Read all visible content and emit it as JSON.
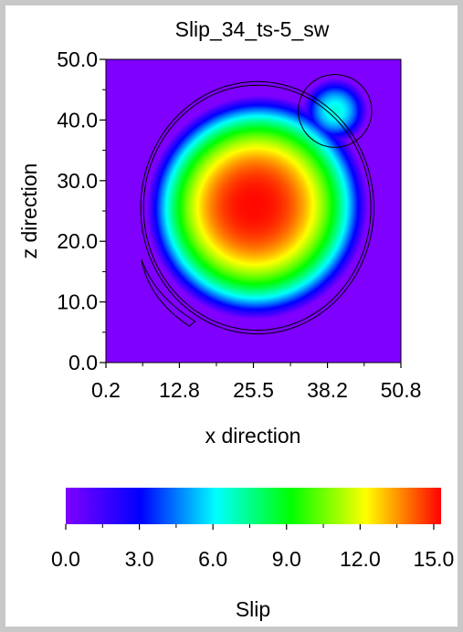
{
  "chart_data": {
    "type": "heatmap",
    "title": "Slip_34_ts-5_sw",
    "xlabel": "x direction",
    "ylabel": "z direction",
    "x_ticks": [
      "0.2",
      "12.8",
      "25.5",
      "38.2",
      "50.8"
    ],
    "x_tick_values": [
      0.2,
      12.8,
      25.5,
      38.2,
      50.8
    ],
    "y_ticks": [
      "0.0",
      "10.0",
      "20.0",
      "30.0",
      "40.0",
      "50.0"
    ],
    "y_tick_values": [
      0,
      10,
      20,
      30,
      40,
      50
    ],
    "xlim": [
      0.2,
      50.8
    ],
    "ylim": [
      0,
      50
    ],
    "colorbar": {
      "label": "Slip",
      "ticks": [
        "0.0",
        "3.0",
        "6.0",
        "9.0",
        "12.0",
        "15.0"
      ],
      "tick_values": [
        0,
        3,
        6,
        9,
        12,
        15
      ],
      "range": [
        0,
        15.3
      ],
      "colormap": [
        "#7f00ff",
        "#0000ff",
        "#00ffff",
        "#00ff00",
        "#ffff00",
        "#ff0000"
      ]
    },
    "field": {
      "background_value": 0,
      "main_patch": {
        "center_x": 25.5,
        "center_z": 26,
        "peak_slip": 15.2
      },
      "secondary_patch": {
        "center_x": 39.5,
        "center_z": 41.5,
        "peak_slip": 6.5
      }
    },
    "grid": false
  }
}
